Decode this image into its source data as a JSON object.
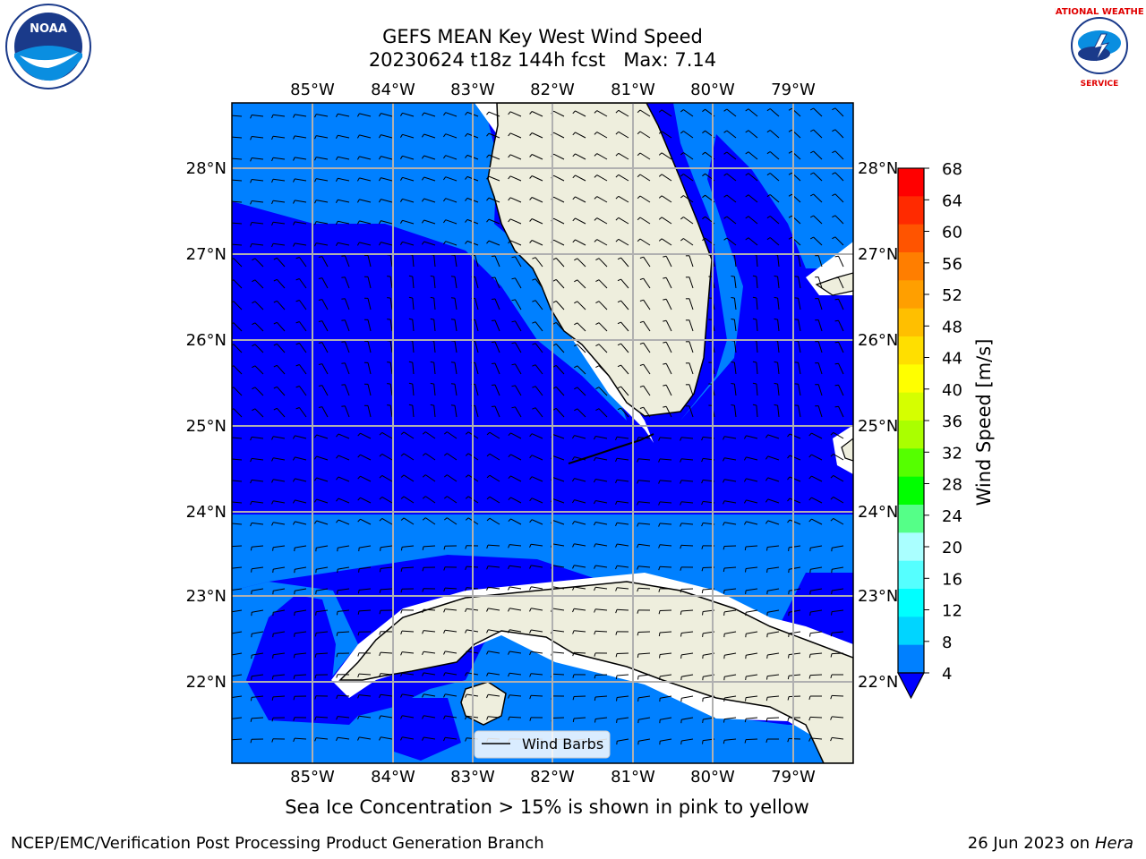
{
  "title": {
    "line1": "GEFS MEAN Key West Wind Speed",
    "line2": "20230624 t18z 144h fcst   Max: 7.14"
  },
  "map": {
    "lon_labels": [
      "85°W",
      "84°W",
      "83°W",
      "82°W",
      "81°W",
      "80°W",
      "79°W"
    ],
    "lat_labels": [
      "28°N",
      "27°N",
      "26°N",
      "25°N",
      "24°N",
      "23°N",
      "22°N"
    ],
    "legend_label": "Wind Barbs",
    "colors": {
      "ocean_low": "#0080ff",
      "ocean_mid": "#0000ff",
      "land": "#eeeedd",
      "gridline": "#b0b0b0"
    }
  },
  "colorbar": {
    "label": "Wind Speed [m/s]",
    "ticks": [
      "68",
      "64",
      "60",
      "56",
      "52",
      "48",
      "44",
      "40",
      "36",
      "32",
      "28",
      "24",
      "20",
      "16",
      "12",
      "8",
      "4"
    ],
    "colors": [
      "#ff0000",
      "#ff2a00",
      "#ff5400",
      "#ff7e00",
      "#ff9f00",
      "#ffbf00",
      "#ffdf00",
      "#ffff00",
      "#d5ff00",
      "#aaff00",
      "#55ff00",
      "#00ff00",
      "#55ff88",
      "#aaffff",
      "#55ffff",
      "#00ffff",
      "#00d5ff",
      "#0080ff"
    ],
    "extend_color": "#0000ff"
  },
  "caption": "Sea Ice Concentration > 15% is shown in pink to yellow",
  "footer": {
    "left": "NCEP/EMC/Verification Post Processing Product Generation Branch",
    "date": "26 Jun 2023 on",
    "host": "Hera"
  },
  "logos": {
    "noaa": "NOAA",
    "nws_top": "NATIONAL WEATHER",
    "nws_bottom": "SERVICE"
  }
}
